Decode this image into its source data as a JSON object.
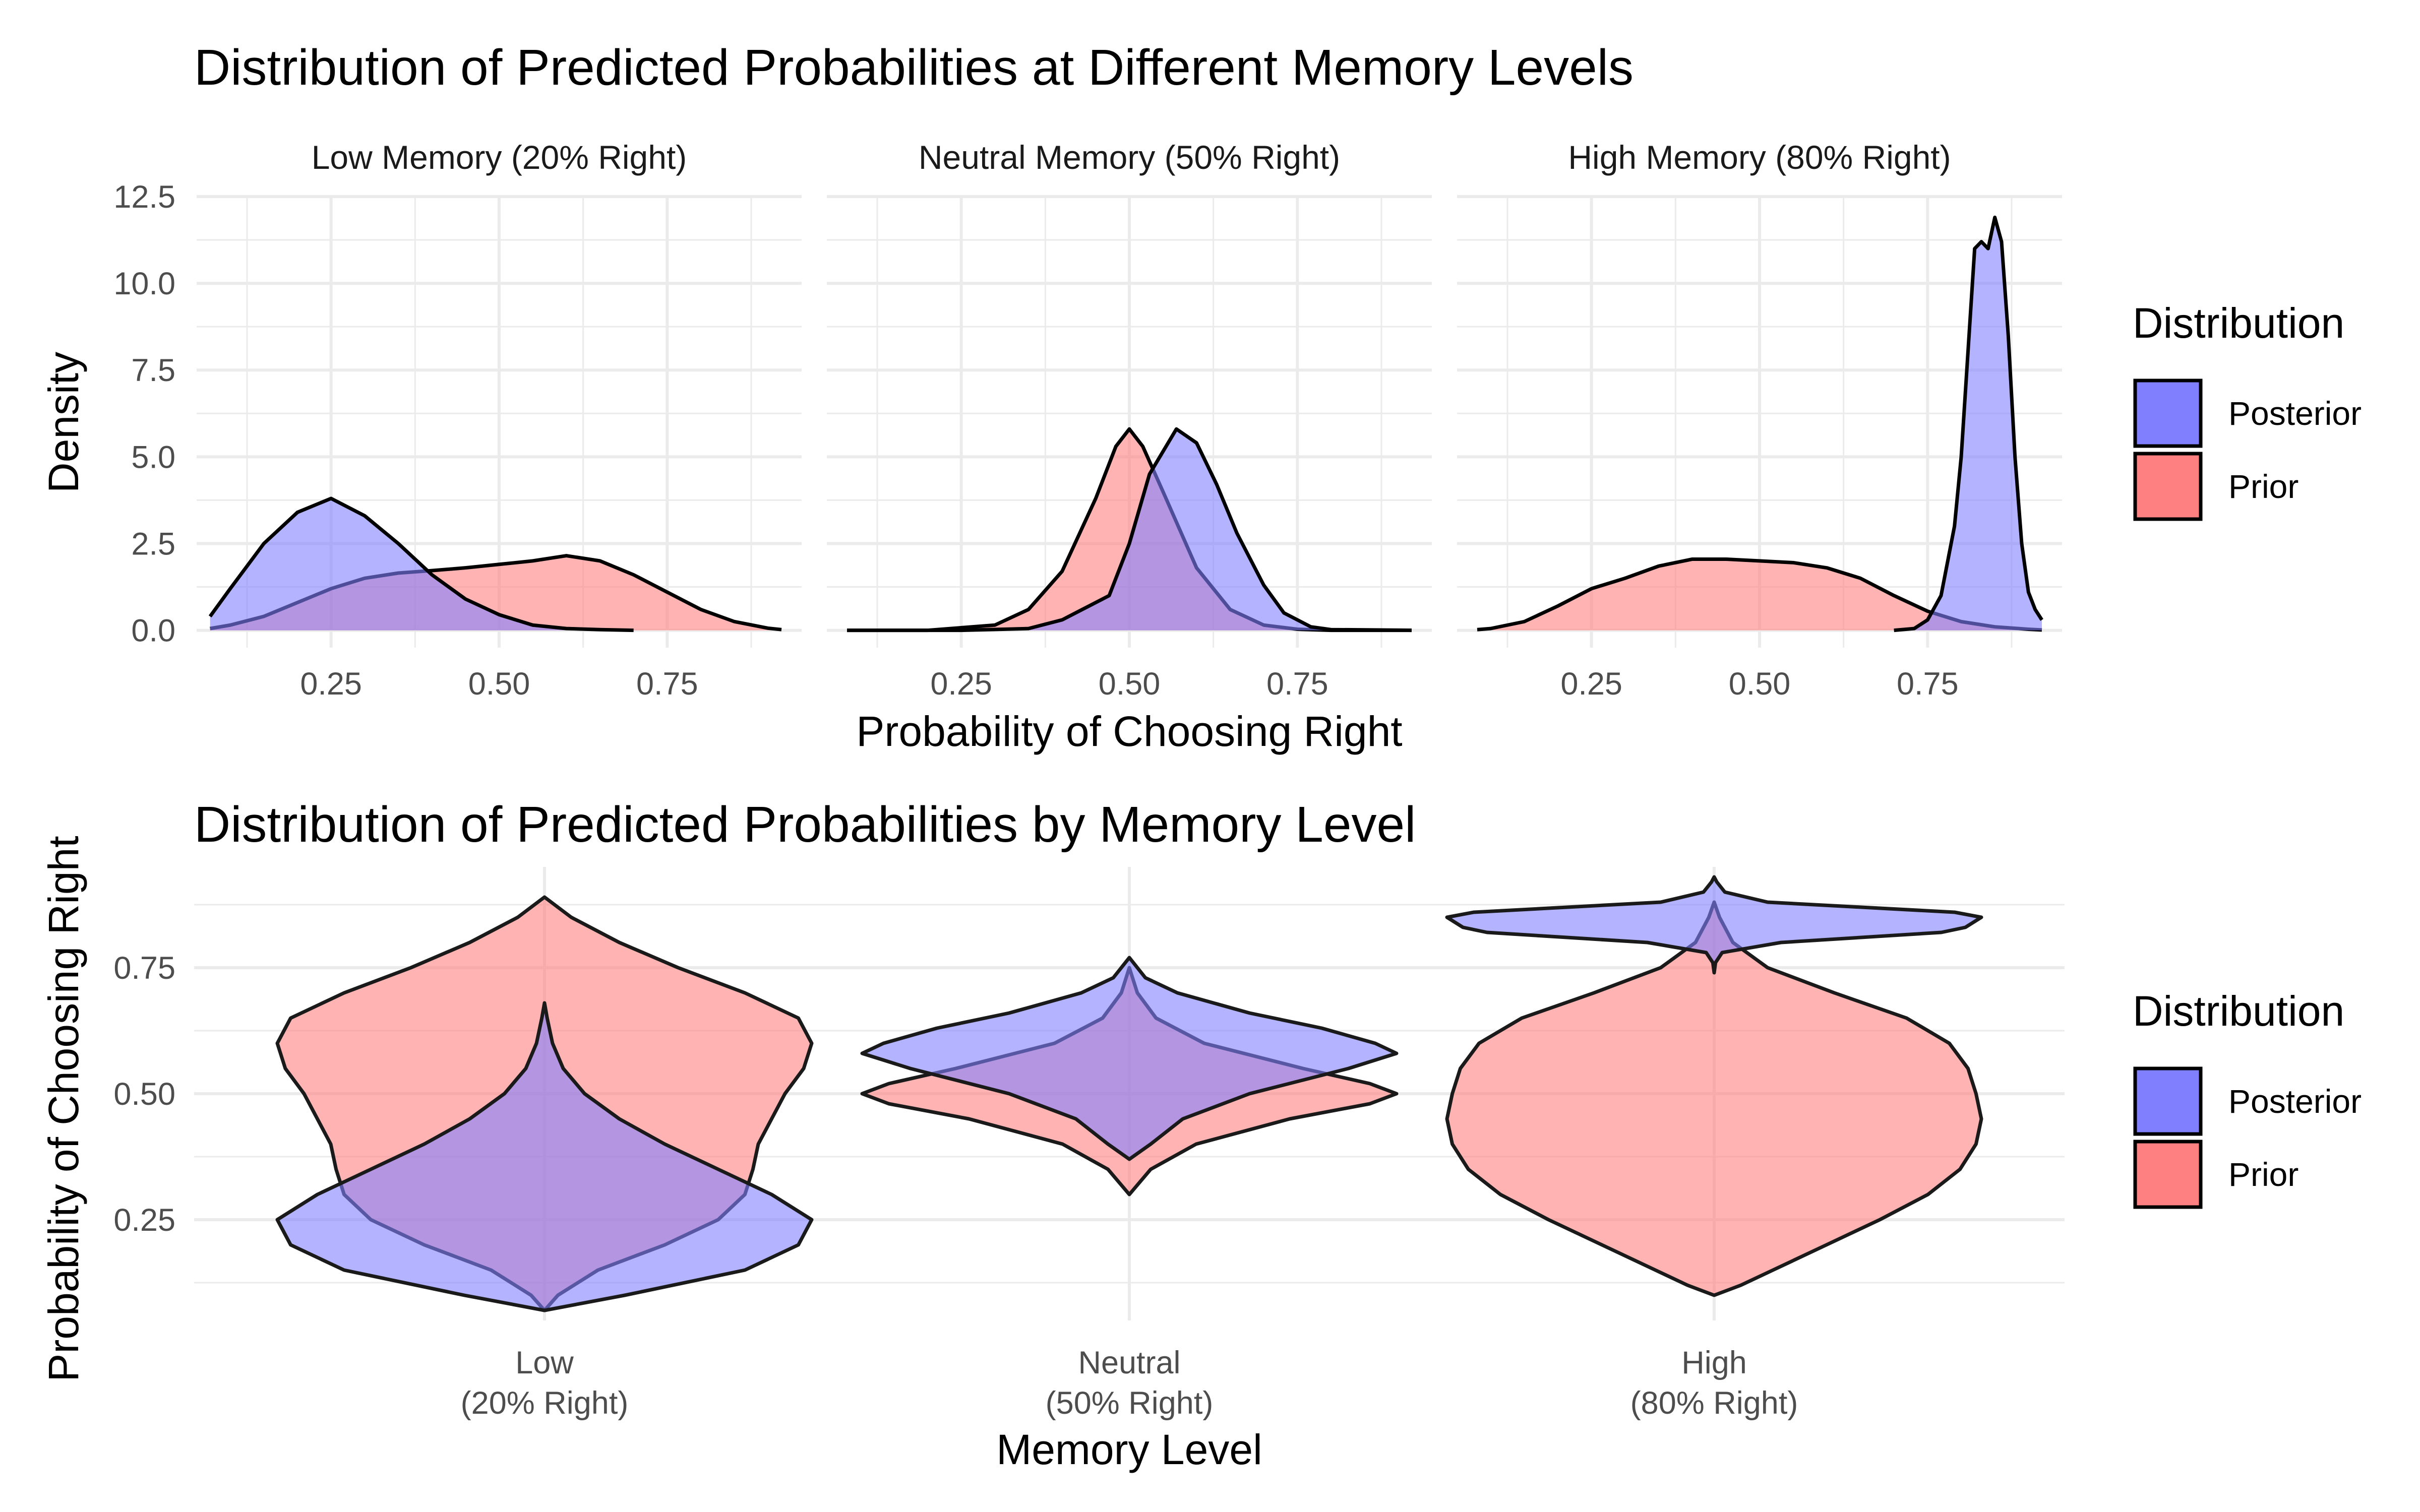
{
  "colors": {
    "posterior": "#8080ff",
    "prior": "#ff8080",
    "outline": "#000000"
  },
  "legend_title": "Distribution",
  "legend_items": [
    "Posterior",
    "Prior"
  ],
  "chart_data": [
    {
      "type": "area",
      "subtype": "faceted density",
      "title": "Distribution of Predicted Probabilities at Different Memory Levels",
      "xlabel": "Probability of Choosing Right",
      "ylabel": "Density",
      "xlim": [
        0.05,
        0.95
      ],
      "ylim": [
        -0.5,
        12.5
      ],
      "x_ticks": [
        "0.25",
        "0.50",
        "0.75"
      ],
      "y_ticks": [
        "0.0",
        "2.5",
        "5.0",
        "7.5",
        "10.0",
        "12.5"
      ],
      "grid": true,
      "legend": "right",
      "facets": [
        {
          "label": "Low Memory (20% Right)",
          "series": [
            {
              "name": "Prior",
              "x": [
                0.07,
                0.1,
                0.15,
                0.2,
                0.25,
                0.3,
                0.35,
                0.4,
                0.45,
                0.5,
                0.55,
                0.6,
                0.65,
                0.7,
                0.75,
                0.8,
                0.85,
                0.9,
                0.92
              ],
              "y": [
                0.05,
                0.15,
                0.4,
                0.8,
                1.2,
                1.5,
                1.65,
                1.72,
                1.8,
                1.9,
                2.0,
                2.15,
                2.0,
                1.6,
                1.1,
                0.6,
                0.25,
                0.06,
                0.02
              ]
            },
            {
              "name": "Posterior",
              "x": [
                0.07,
                0.1,
                0.15,
                0.2,
                0.25,
                0.3,
                0.35,
                0.4,
                0.45,
                0.5,
                0.55,
                0.6,
                0.65,
                0.7
              ],
              "y": [
                0.4,
                1.2,
                2.5,
                3.4,
                3.8,
                3.3,
                2.5,
                1.6,
                0.9,
                0.45,
                0.15,
                0.05,
                0.02,
                0.0
              ]
            }
          ]
        },
        {
          "label": "Neutral Memory (50% Right)",
          "series": [
            {
              "name": "Prior",
              "x": [
                0.08,
                0.2,
                0.3,
                0.35,
                0.4,
                0.45,
                0.48,
                0.5,
                0.52,
                0.55,
                0.6,
                0.65,
                0.7,
                0.75,
                0.8,
                0.92
              ],
              "y": [
                0.0,
                0.0,
                0.15,
                0.6,
                1.7,
                3.8,
                5.3,
                5.8,
                5.3,
                4.0,
                1.8,
                0.6,
                0.15,
                0.03,
                0.0,
                0.0
              ]
            },
            {
              "name": "Posterior",
              "x": [
                0.08,
                0.25,
                0.35,
                0.4,
                0.43,
                0.47,
                0.5,
                0.53,
                0.57,
                0.6,
                0.63,
                0.66,
                0.7,
                0.73,
                0.77,
                0.8,
                0.92
              ],
              "y": [
                0.0,
                0.0,
                0.05,
                0.3,
                0.6,
                1.0,
                2.5,
                4.5,
                5.8,
                5.4,
                4.2,
                2.8,
                1.3,
                0.5,
                0.1,
                0.02,
                0.0
              ]
            }
          ]
        },
        {
          "label": "High Memory (80% Right)",
          "series": [
            {
              "name": "Prior",
              "x": [
                0.08,
                0.1,
                0.15,
                0.2,
                0.25,
                0.3,
                0.35,
                0.4,
                0.45,
                0.5,
                0.55,
                0.6,
                0.65,
                0.7,
                0.75,
                0.8,
                0.85,
                0.9,
                0.92
              ],
              "y": [
                0.02,
                0.05,
                0.25,
                0.7,
                1.2,
                1.5,
                1.85,
                2.05,
                2.05,
                2.0,
                1.95,
                1.8,
                1.5,
                1.0,
                0.55,
                0.25,
                0.1,
                0.03,
                0.01
              ]
            },
            {
              "name": "Posterior",
              "x": [
                0.7,
                0.73,
                0.75,
                0.77,
                0.79,
                0.8,
                0.81,
                0.82,
                0.83,
                0.84,
                0.85,
                0.86,
                0.87,
                0.88,
                0.89,
                0.9,
                0.91,
                0.92
              ],
              "y": [
                0.0,
                0.05,
                0.3,
                1.0,
                3.0,
                5.0,
                8.0,
                11.0,
                11.2,
                11.0,
                11.9,
                11.2,
                8.5,
                5.0,
                2.5,
                1.1,
                0.6,
                0.3
              ]
            }
          ]
        }
      ]
    },
    {
      "type": "area",
      "subtype": "violin",
      "title": "Distribution of Predicted Probabilities by Memory Level",
      "xlabel": "Memory Level",
      "ylabel": "Probability of Choosing Right",
      "ylim": [
        0.05,
        0.95
      ],
      "y_ticks": [
        "0.25",
        "0.50",
        "0.75"
      ],
      "categories": [
        "Low\n(20% Right)",
        "Neutral\n(50% Right)",
        "High\n(80% Right)"
      ],
      "grid": true,
      "legend": "right",
      "violins": [
        {
          "category": "Low\n(20% Right)",
          "series": [
            {
              "name": "Prior",
              "y": [
                0.07,
                0.1,
                0.15,
                0.2,
                0.25,
                0.3,
                0.35,
                0.4,
                0.45,
                0.5,
                0.55,
                0.6,
                0.65,
                0.7,
                0.75,
                0.8,
                0.85,
                0.89
              ],
              "density": [
                0.0,
                0.05,
                0.2,
                0.45,
                0.65,
                0.75,
                0.78,
                0.8,
                0.85,
                0.9,
                0.97,
                1.0,
                0.95,
                0.75,
                0.5,
                0.28,
                0.1,
                0.0
              ]
            },
            {
              "name": "Posterior",
              "y": [
                0.07,
                0.1,
                0.15,
                0.2,
                0.25,
                0.3,
                0.35,
                0.4,
                0.45,
                0.5,
                0.55,
                0.6,
                0.65,
                0.68
              ],
              "density": [
                0.0,
                0.3,
                0.75,
                0.95,
                1.0,
                0.85,
                0.65,
                0.45,
                0.28,
                0.15,
                0.07,
                0.03,
                0.01,
                0.0
              ]
            }
          ]
        },
        {
          "category": "Neutral\n(50% Right)",
          "series": [
            {
              "name": "Prior",
              "y": [
                0.3,
                0.35,
                0.4,
                0.45,
                0.48,
                0.5,
                0.52,
                0.55,
                0.6,
                0.65,
                0.7,
                0.75
              ],
              "density": [
                0.0,
                0.08,
                0.25,
                0.6,
                0.9,
                1.0,
                0.9,
                0.65,
                0.28,
                0.1,
                0.03,
                0.0
              ]
            },
            {
              "name": "Posterior",
              "y": [
                0.37,
                0.4,
                0.45,
                0.5,
                0.55,
                0.58,
                0.6,
                0.63,
                0.66,
                0.7,
                0.73,
                0.77
              ],
              "density": [
                0.0,
                0.08,
                0.2,
                0.45,
                0.82,
                1.0,
                0.92,
                0.72,
                0.45,
                0.18,
                0.06,
                0.0
              ]
            }
          ]
        },
        {
          "category": "High\n(80% Right)",
          "series": [
            {
              "name": "Prior",
              "y": [
                0.1,
                0.12,
                0.15,
                0.2,
                0.25,
                0.3,
                0.35,
                0.4,
                0.45,
                0.5,
                0.55,
                0.6,
                0.65,
                0.7,
                0.75,
                0.8,
                0.85,
                0.88
              ],
              "density": [
                0.0,
                0.1,
                0.22,
                0.42,
                0.62,
                0.8,
                0.92,
                0.98,
                1.0,
                0.98,
                0.95,
                0.88,
                0.72,
                0.45,
                0.2,
                0.07,
                0.02,
                0.0
              ]
            },
            {
              "name": "Posterior",
              "y": [
                0.74,
                0.76,
                0.78,
                0.8,
                0.82,
                0.83,
                0.84,
                0.85,
                0.86,
                0.87,
                0.88,
                0.9,
                0.92,
                0.93
              ],
              "density": [
                0.0,
                0.005,
                0.03,
                0.25,
                0.85,
                0.94,
                0.97,
                1.0,
                0.9,
                0.55,
                0.2,
                0.04,
                0.01,
                0.0
              ]
            }
          ]
        }
      ]
    }
  ]
}
